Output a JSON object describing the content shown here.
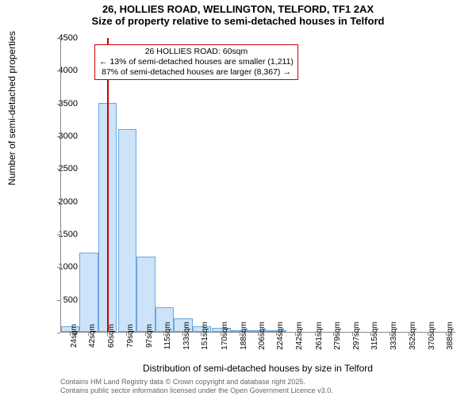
{
  "chart": {
    "type": "histogram",
    "title_line1": "26, HOLLIES ROAD, WELLINGTON, TELFORD, TF1 2AX",
    "title_line2": "Size of property relative to semi-detached houses in Telford",
    "title_fontsize": 13,
    "ylabel": "Number of semi-detached properties",
    "xlabel": "Distribution of semi-detached houses by size in Telford",
    "label_fontsize": 12,
    "background_color": "#ffffff",
    "axis_color": "#888888",
    "bar_fill": "#cde3f8",
    "bar_border": "#6aa6e0",
    "bar_width_ratio": 1.0,
    "reference_line_color": "#cc0000",
    "reference_line_x": 60,
    "annotation_border": "#cc0000",
    "annotation_lines": [
      "26 HOLLIES ROAD: 60sqm",
      "← 13% of semi-detached houses are smaller (1,211)",
      "87% of semi-detached houses are larger (8,367) →"
    ],
    "x_categories": [
      "24sqm",
      "42sqm",
      "60sqm",
      "79sqm",
      "97sqm",
      "115sqm",
      "133sqm",
      "151sqm",
      "170sqm",
      "188sqm",
      "206sqm",
      "224sqm",
      "242sqm",
      "261sqm",
      "279sqm",
      "297sqm",
      "315sqm",
      "333sqm",
      "352sqm",
      "370sqm",
      "388sqm"
    ],
    "x_values": [
      24,
      42,
      60,
      79,
      97,
      115,
      133,
      151,
      170,
      188,
      206,
      224,
      242,
      261,
      279,
      297,
      315,
      333,
      352,
      370,
      388
    ],
    "y_values": [
      80,
      1210,
      3500,
      3100,
      1150,
      370,
      200,
      80,
      55,
      30,
      10,
      12,
      0,
      0,
      0,
      0,
      0,
      0,
      0,
      0,
      0
    ],
    "xlim": [
      15,
      397
    ],
    "ylim": [
      0,
      4500
    ],
    "yticks": [
      0,
      500,
      1000,
      1500,
      2000,
      2500,
      3000,
      3500,
      4000,
      4500
    ],
    "tick_fontsize": 11,
    "footer_line1": "Contains HM Land Registry data © Crown copyright and database right 2025.",
    "footer_line2": "Contains public sector information licensed under the Open Government Licence v3.0.",
    "footer_color": "#666666",
    "footer_fontsize": 9
  }
}
